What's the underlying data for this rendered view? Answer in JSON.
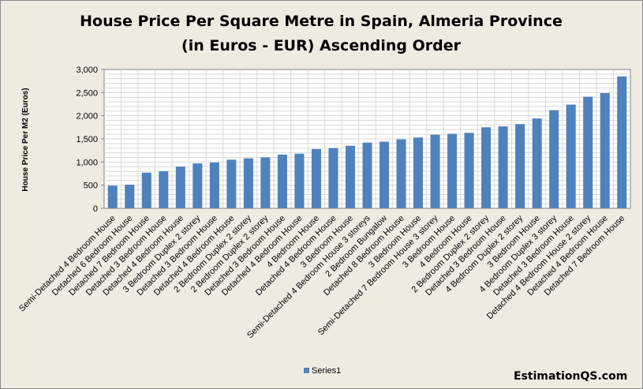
{
  "chart_data": {
    "type": "bar",
    "title": [
      "House Price Per Square Metre in Spain, Almeria Province",
      "(in Euros - EUR) Ascending Order"
    ],
    "ylabel": "House Price Per M2 (Euros)",
    "xlabel": "",
    "ylim": [
      0,
      3000
    ],
    "yticks": [
      0,
      500,
      1000,
      1500,
      2000,
      2500,
      3000
    ],
    "ytick_labels": [
      "0",
      "500",
      "1,000",
      "1,500",
      "2,000",
      "2,500",
      "3,000"
    ],
    "grid": true,
    "legend_position": "bottom",
    "bar_color": "#4f81bd",
    "categories": [
      "Semi-Detached 4 Bedroom House",
      "Detached 6 Bedroom House",
      "Detached 7 Bedroom House",
      "Detached 3 Bedroom House",
      "Detached 4 Bedroom House",
      "3 Bedroom Duplex 2 storey",
      "Detached 3 Bedroom House",
      "Detached 4 Bedroom House",
      "2 Bedroom Duplex 2 storey",
      "2 Bedroom Duplex 2 storey",
      "Detached 3 Bedroom House",
      "Detached 4 Bedroom House",
      "4 Bedroom House",
      "Detached 4 Bedroom House",
      "3 Bedroom House",
      "Semi-Detached 4 Bedroom House 3 storeys",
      "2 Bedroom Bungalow",
      "Detached 8 Bedroom House",
      "3 Bedroom House",
      "Semi-Detached 7 Bedroom House 3 storey",
      "3 Bedroom House",
      "4 Bedroom House",
      "2 Bedroom Duplex 2 storey",
      "Detached 3 Bedroom House",
      "4 Bedroom Duplex 2 storey",
      "3 Bedroom House",
      "4 Bedroom Duplex 3 storey",
      "Detached 3 Bedroom House",
      "Detached 4 Bedroom House 2 storey",
      "Detached 4 Bedroom House",
      "Detached 7 Bedroom House"
    ],
    "series": [
      {
        "name": "Series1",
        "values": [
          490,
          510,
          770,
          800,
          900,
          970,
          990,
          1050,
          1080,
          1100,
          1160,
          1180,
          1280,
          1300,
          1350,
          1420,
          1440,
          1490,
          1530,
          1590,
          1610,
          1630,
          1750,
          1770,
          1820,
          1940,
          2120,
          2240,
          2410,
          2490,
          2850
        ]
      }
    ]
  },
  "watermark": "EstimationQS.com"
}
